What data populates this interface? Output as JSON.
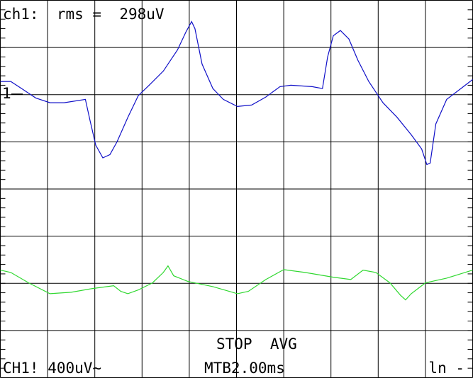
{
  "chart_data": {
    "type": "line",
    "measurement": "ch1:  rms =  298uV",
    "marker": "1",
    "status": "STOP  AVG",
    "channel_scale": "CH1! 400uV~",
    "timebase": "MTB2.00ms",
    "trigger": "ln -",
    "xlim": [
      0,
      10
    ],
    "ylim": [
      0,
      8
    ],
    "grid": true,
    "series": [
      {
        "color": "#1010c8",
        "x": [
          0,
          0.22,
          0.45,
          0.75,
          1.05,
          1.35,
          1.8,
          1.9,
          2.02,
          2.17,
          2.32,
          2.47,
          2.7,
          2.92,
          3.15,
          3.45,
          3.75,
          3.93,
          4.05,
          4.12,
          4.27,
          4.5,
          4.72,
          5.02,
          5.32,
          5.62,
          5.92,
          6.15,
          6.6,
          6.82,
          6.93,
          7.05,
          7.2,
          7.38,
          7.57,
          7.8,
          8.1,
          8.4,
          8.7,
          8.92,
          9.03,
          9.1,
          9.22,
          9.45,
          9.75,
          10
        ],
        "values": [
          6.28,
          6.28,
          6.13,
          5.93,
          5.83,
          5.83,
          5.9,
          5.45,
          4.93,
          4.66,
          4.73,
          5.0,
          5.52,
          5.98,
          6.2,
          6.5,
          6.95,
          7.33,
          7.55,
          7.4,
          6.65,
          6.13,
          5.9,
          5.75,
          5.78,
          5.95,
          6.17,
          6.2,
          6.17,
          6.13,
          6.8,
          7.25,
          7.36,
          7.18,
          6.73,
          6.28,
          5.83,
          5.52,
          5.15,
          4.85,
          4.52,
          4.55,
          5.38,
          5.9,
          6.13,
          6.32
        ]
      },
      {
        "color": "#30d830",
        "x": [
          0,
          0.22,
          0.6,
          1.05,
          1.5,
          1.95,
          2.4,
          2.55,
          2.7,
          2.92,
          3.22,
          3.45,
          3.55,
          3.67,
          3.97,
          4.5,
          5.02,
          5.25,
          5.62,
          6.0,
          6.45,
          7.05,
          7.42,
          7.68,
          7.95,
          8.25,
          8.47,
          8.58,
          8.7,
          9.0,
          9.45,
          10
        ],
        "values": [
          2.28,
          2.23,
          2.01,
          1.78,
          1.81,
          1.89,
          1.95,
          1.83,
          1.78,
          1.86,
          2.01,
          2.23,
          2.37,
          2.16,
          2.04,
          1.93,
          1.78,
          1.83,
          2.08,
          2.29,
          2.23,
          2.13,
          2.08,
          2.28,
          2.23,
          2.01,
          1.75,
          1.65,
          1.78,
          2.01,
          2.11,
          2.28
        ]
      }
    ]
  }
}
